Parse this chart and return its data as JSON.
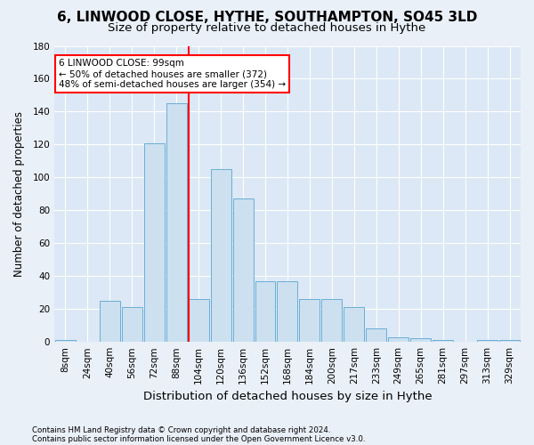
{
  "title": "6, LINWOOD CLOSE, HYTHE, SOUTHAMPTON, SO45 3LD",
  "subtitle": "Size of property relative to detached houses in Hythe",
  "xlabel": "Distribution of detached houses by size in Hythe",
  "ylabel": "Number of detached properties",
  "footnote1": "Contains HM Land Registry data © Crown copyright and database right 2024.",
  "footnote2": "Contains public sector information licensed under the Open Government Licence v3.0.",
  "bar_labels": [
    "8sqm",
    "24sqm",
    "40sqm",
    "56sqm",
    "72sqm",
    "88sqm",
    "104sqm",
    "120sqm",
    "136sqm",
    "152sqm",
    "168sqm",
    "184sqm",
    "200sqm",
    "217sqm",
    "233sqm",
    "249sqm",
    "265sqm",
    "281sqm",
    "297sqm",
    "313sqm",
    "329sqm"
  ],
  "bar_values": [
    1,
    0,
    25,
    21,
    121,
    145,
    26,
    105,
    87,
    37,
    37,
    26,
    26,
    21,
    8,
    3,
    2,
    1,
    0,
    1,
    1
  ],
  "bar_color": "#cce0f0",
  "bar_edgecolor": "#6aaed6",
  "vline_x": 6.0,
  "vline_color": "red",
  "annotation_text": "6 LINWOOD CLOSE: 99sqm\n← 50% of detached houses are smaller (372)\n48% of semi-detached houses are larger (354) →",
  "annotation_box_color": "red",
  "ylim": [
    0,
    180
  ],
  "yticks": [
    0,
    20,
    40,
    60,
    80,
    100,
    120,
    140,
    160,
    180
  ],
  "background_color": "#eaf0f8",
  "plot_bg_color": "#dce8f5",
  "grid_color": "white",
  "title_fontsize": 11,
  "subtitle_fontsize": 9.5,
  "xlabel_fontsize": 9.5,
  "ylabel_fontsize": 8.5,
  "tick_fontsize": 7.5,
  "annot_fontsize": 7.5
}
